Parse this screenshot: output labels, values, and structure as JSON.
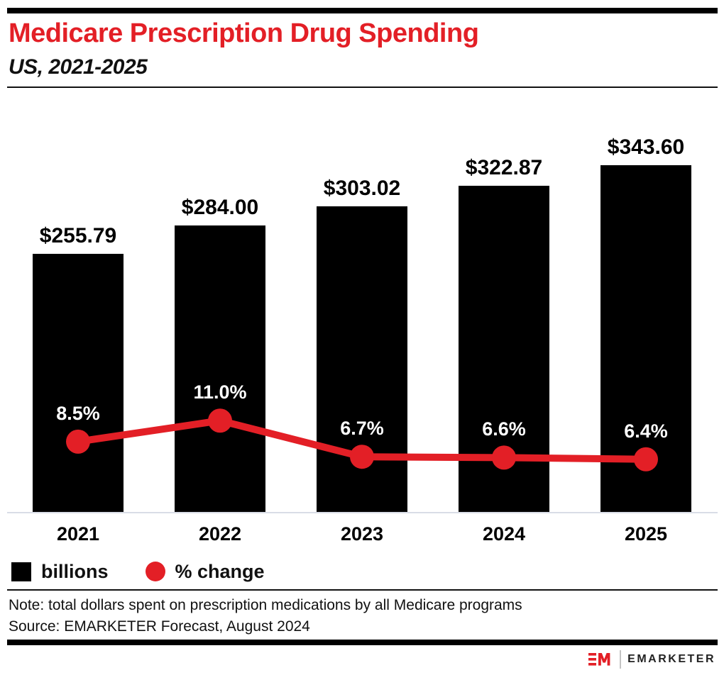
{
  "header": {
    "title": "Medicare Prescription Drug Spending",
    "subtitle": "US, 2021-2025"
  },
  "chart_data": {
    "type": "bar",
    "categories": [
      "2021",
      "2022",
      "2023",
      "2024",
      "2025"
    ],
    "series": [
      {
        "name": "billions",
        "type": "bar",
        "values": [
          255.79,
          284.0,
          303.02,
          322.87,
          343.6
        ],
        "labels": [
          "$255.79",
          "$284.00",
          "$303.02",
          "$322.87",
          "$343.60"
        ],
        "color": "#000000"
      },
      {
        "name": "% change",
        "type": "line",
        "values": [
          8.5,
          11.0,
          6.7,
          6.6,
          6.4
        ],
        "labels": [
          "8.5%",
          "11.0%",
          "6.7%",
          "6.6%",
          "6.4%"
        ],
        "color": "#e31f26"
      }
    ],
    "title": "Medicare Prescription Drug Spending",
    "subtitle": "US, 2021-2025",
    "xlabel": "",
    "ylabel": "",
    "legend_position": "bottom-left",
    "grid": false
  },
  "legend": {
    "items": [
      {
        "label": "billions",
        "swatch": "square",
        "color": "#000000"
      },
      {
        "label": "% change",
        "swatch": "circle",
        "color": "#e31f26"
      }
    ]
  },
  "footer": {
    "note": "Note: total dollars spent on prescription medications by all Medicare programs",
    "source": "Source: EMARKETER Forecast, August 2024",
    "brand": "EMARKETER"
  },
  "colors": {
    "accent_red": "#e31f26",
    "bar_black": "#000000",
    "axis_line": "#d9dde6"
  }
}
